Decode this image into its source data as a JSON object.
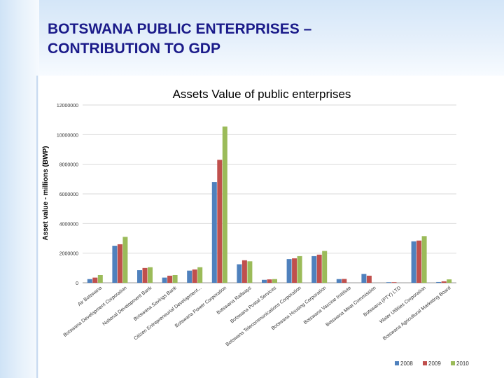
{
  "slide": {
    "title_line1": "BOTSWANA PUBLIC ENTERPRISES –",
    "title_line2": "CONTRIBUTION TO GDP"
  },
  "colors": {
    "series": [
      "#4f81bd",
      "#c0504d",
      "#9bbb59"
    ],
    "title": "#1b1b8a"
  },
  "chart_data": {
    "type": "bar",
    "title": "Assets Value of public enterprises",
    "xlabel": "",
    "ylabel": "Asset value - millions (BWP)",
    "ylim": [
      0,
      12000000
    ],
    "yticks": [
      "0",
      "2000000",
      "4000000",
      "6000000",
      "8000000",
      "10000000",
      "12000000"
    ],
    "grid": true,
    "legend_position": "bottom-right",
    "categories": [
      "Air Botswana",
      "Botswana Development Corporation",
      "National Development Bank",
      "Botswana Savings Bank",
      "Citizen Entrepreneurial Development...",
      "Botswana Power Corporation",
      "Botswana Railways",
      "Botswana Postal Services",
      "Botswana Telecommunications Corporation",
      "Botswana Housing Corporation",
      "Botswana Vaccine Institute",
      "Botswana Meat Commission",
      "Botswana (PTY) LTD",
      "Water Utilities Corporation",
      "Botswana Agricultural Marketing Board"
    ],
    "series": [
      {
        "name": "2008",
        "values": [
          250000,
          2500000,
          850000,
          350000,
          820000,
          6800000,
          1250000,
          200000,
          1600000,
          1800000,
          250000,
          600000,
          20000,
          2800000,
          50000
        ]
      },
      {
        "name": "2009",
        "values": [
          350000,
          2600000,
          1000000,
          480000,
          900000,
          8300000,
          1520000,
          230000,
          1650000,
          1900000,
          260000,
          480000,
          20000,
          2850000,
          100000
        ]
      },
      {
        "name": "2010",
        "values": [
          520000,
          3100000,
          1050000,
          520000,
          1050000,
          10550000,
          1450000,
          250000,
          1800000,
          2150000,
          null,
          null,
          null,
          3150000,
          230000
        ]
      }
    ]
  }
}
